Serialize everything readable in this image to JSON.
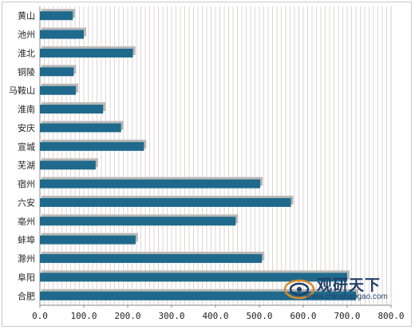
{
  "chart_data": {
    "type": "bar",
    "orientation": "horizontal",
    "categories": [
      "黄山",
      "池州",
      "淮北",
      "铜陵",
      "马鞍山",
      "淮南",
      "安庆",
      "宣城",
      "芜湖",
      "宿州",
      "六安",
      "亳州",
      "蚌埠",
      "滁州",
      "阜阳",
      "合肥"
    ],
    "values": [
      75,
      100,
      212,
      77,
      82,
      144,
      185,
      237,
      127,
      502,
      572,
      446,
      218,
      506,
      700,
      720
    ],
    "xlim": [
      0,
      800
    ],
    "xticks": [
      "0.0",
      "100.0",
      "200.0",
      "300.0",
      "400.0",
      "500.0",
      "600.0",
      "700.0",
      "800.0"
    ],
    "grid": "vertical",
    "legend": "none",
    "colors": {
      "bar": "#1f6a8c",
      "shadow": "#b8b8b8",
      "grid": "#d9c8cc",
      "axis": "#888888"
    }
  },
  "watermark": {
    "name": "观研天下",
    "url": "www.chinabaogao.com"
  }
}
